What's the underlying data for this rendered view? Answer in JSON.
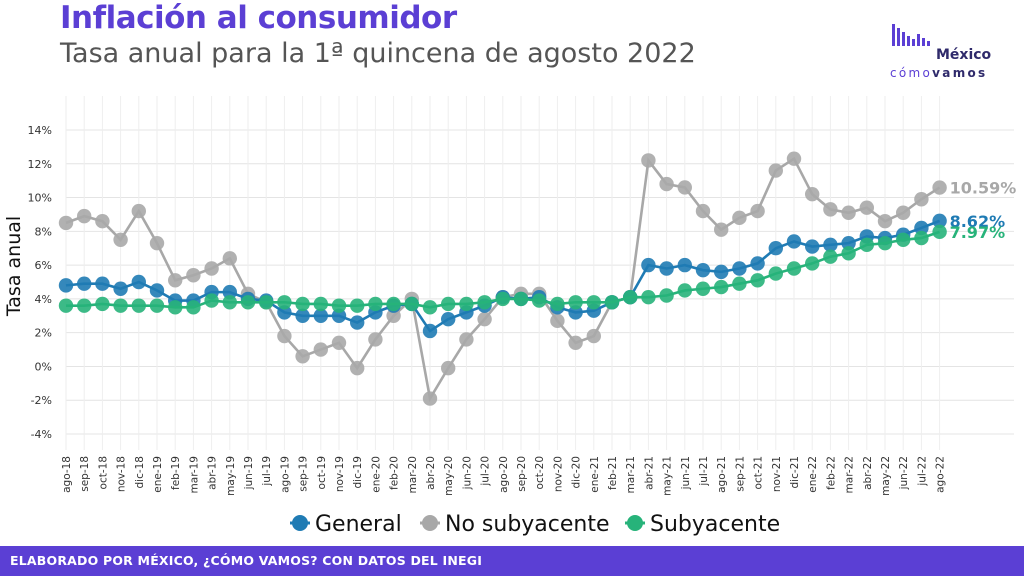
{
  "header": {
    "title": "Inflación al consumidor",
    "subtitle": "Tasa anual para la 1ª quincena de agosto 2022"
  },
  "logo": {
    "word": "México",
    "sub_a": "cómo",
    "sub_b": "vamos"
  },
  "footer": {
    "text": "ELABORADO POR MÉXICO, ¿CÓMO VAMOS? CON DATOS DEL INEGI"
  },
  "colors": {
    "title": "#5b3fd4",
    "footer_bg": "#5b3fd4",
    "general": "#1f7bb4",
    "no_subyacente": "#a8a8a8",
    "subyacente": "#27b37a"
  },
  "chart_data": {
    "type": "line",
    "ylabel": "Tasa anual",
    "ylim": [
      -4,
      14
    ],
    "yticks": [
      -4,
      -2,
      0,
      2,
      4,
      6,
      8,
      10,
      12,
      14
    ],
    "ytick_labels": [
      "-4%",
      "-2%",
      "0%",
      "2%",
      "4%",
      "6%",
      "8%",
      "10%",
      "12%",
      "14%"
    ],
    "grid": true,
    "legend_position": "bottom",
    "categories": [
      "ago-18",
      "sep-18",
      "oct-18",
      "nov-18",
      "dic-18",
      "ene-19",
      "feb-19",
      "mar-19",
      "abr-19",
      "may-19",
      "jun-19",
      "jul-19",
      "ago-19",
      "sep-19",
      "oct-19",
      "nov-19",
      "dic-19",
      "ene-20",
      "feb-20",
      "mar-20",
      "abr-20",
      "may-20",
      "jun-20",
      "jul-20",
      "ago-20",
      "sep-20",
      "oct-20",
      "nov-20",
      "dic-20",
      "ene-21",
      "feb-21",
      "mar-21",
      "abr-21",
      "may-21",
      "jun-21",
      "jul-21",
      "ago-21",
      "sep-21",
      "oct-21",
      "nov-21",
      "dic-21",
      "ene-22",
      "feb-22",
      "mar-22",
      "abr-22",
      "may-22",
      "jun-22",
      "jul-22",
      "ago-22"
    ],
    "series": [
      {
        "name": "No subyacente",
        "color": "#a8a8a8",
        "end_label": "10.59%",
        "values": [
          8.5,
          8.9,
          8.6,
          7.5,
          9.2,
          7.3,
          5.1,
          5.4,
          5.8,
          6.4,
          4.3,
          3.8,
          1.8,
          0.6,
          1.0,
          1.4,
          -0.1,
          1.6,
          3.0,
          4.0,
          -1.9,
          -0.1,
          1.6,
          2.8,
          4.1,
          4.3,
          4.3,
          2.7,
          1.4,
          1.8,
          3.8,
          4.1,
          12.2,
          10.8,
          10.6,
          9.2,
          8.1,
          8.8,
          9.2,
          11.6,
          12.3,
          10.2,
          9.3,
          9.1,
          9.4,
          8.6,
          9.1,
          9.9,
          10.59
        ]
      },
      {
        "name": "General",
        "color": "#1f7bb4",
        "end_label": "8.62%",
        "values": [
          4.8,
          4.9,
          4.9,
          4.6,
          5.0,
          4.5,
          3.9,
          3.9,
          4.4,
          4.4,
          4.0,
          3.9,
          3.2,
          3.0,
          3.0,
          3.0,
          2.6,
          3.2,
          3.6,
          3.7,
          2.1,
          2.8,
          3.2,
          3.6,
          4.1,
          4.0,
          4.1,
          3.5,
          3.2,
          3.3,
          3.8,
          4.1,
          6.0,
          5.8,
          6.0,
          5.7,
          5.6,
          5.8,
          6.1,
          7.0,
          7.4,
          7.1,
          7.2,
          7.3,
          7.7,
          7.6,
          7.8,
          8.2,
          8.62
        ]
      },
      {
        "name": "Subyacente",
        "color": "#27b37a",
        "end_label": "7.97%",
        "values": [
          3.6,
          3.6,
          3.7,
          3.6,
          3.6,
          3.6,
          3.5,
          3.5,
          3.9,
          3.8,
          3.8,
          3.8,
          3.8,
          3.7,
          3.7,
          3.6,
          3.6,
          3.7,
          3.7,
          3.7,
          3.5,
          3.7,
          3.7,
          3.8,
          4.0,
          4.0,
          3.9,
          3.7,
          3.8,
          3.8,
          3.8,
          4.1,
          4.1,
          4.2,
          4.5,
          4.6,
          4.7,
          4.9,
          5.1,
          5.5,
          5.8,
          6.1,
          6.5,
          6.7,
          7.2,
          7.3,
          7.5,
          7.6,
          7.97
        ]
      }
    ]
  }
}
